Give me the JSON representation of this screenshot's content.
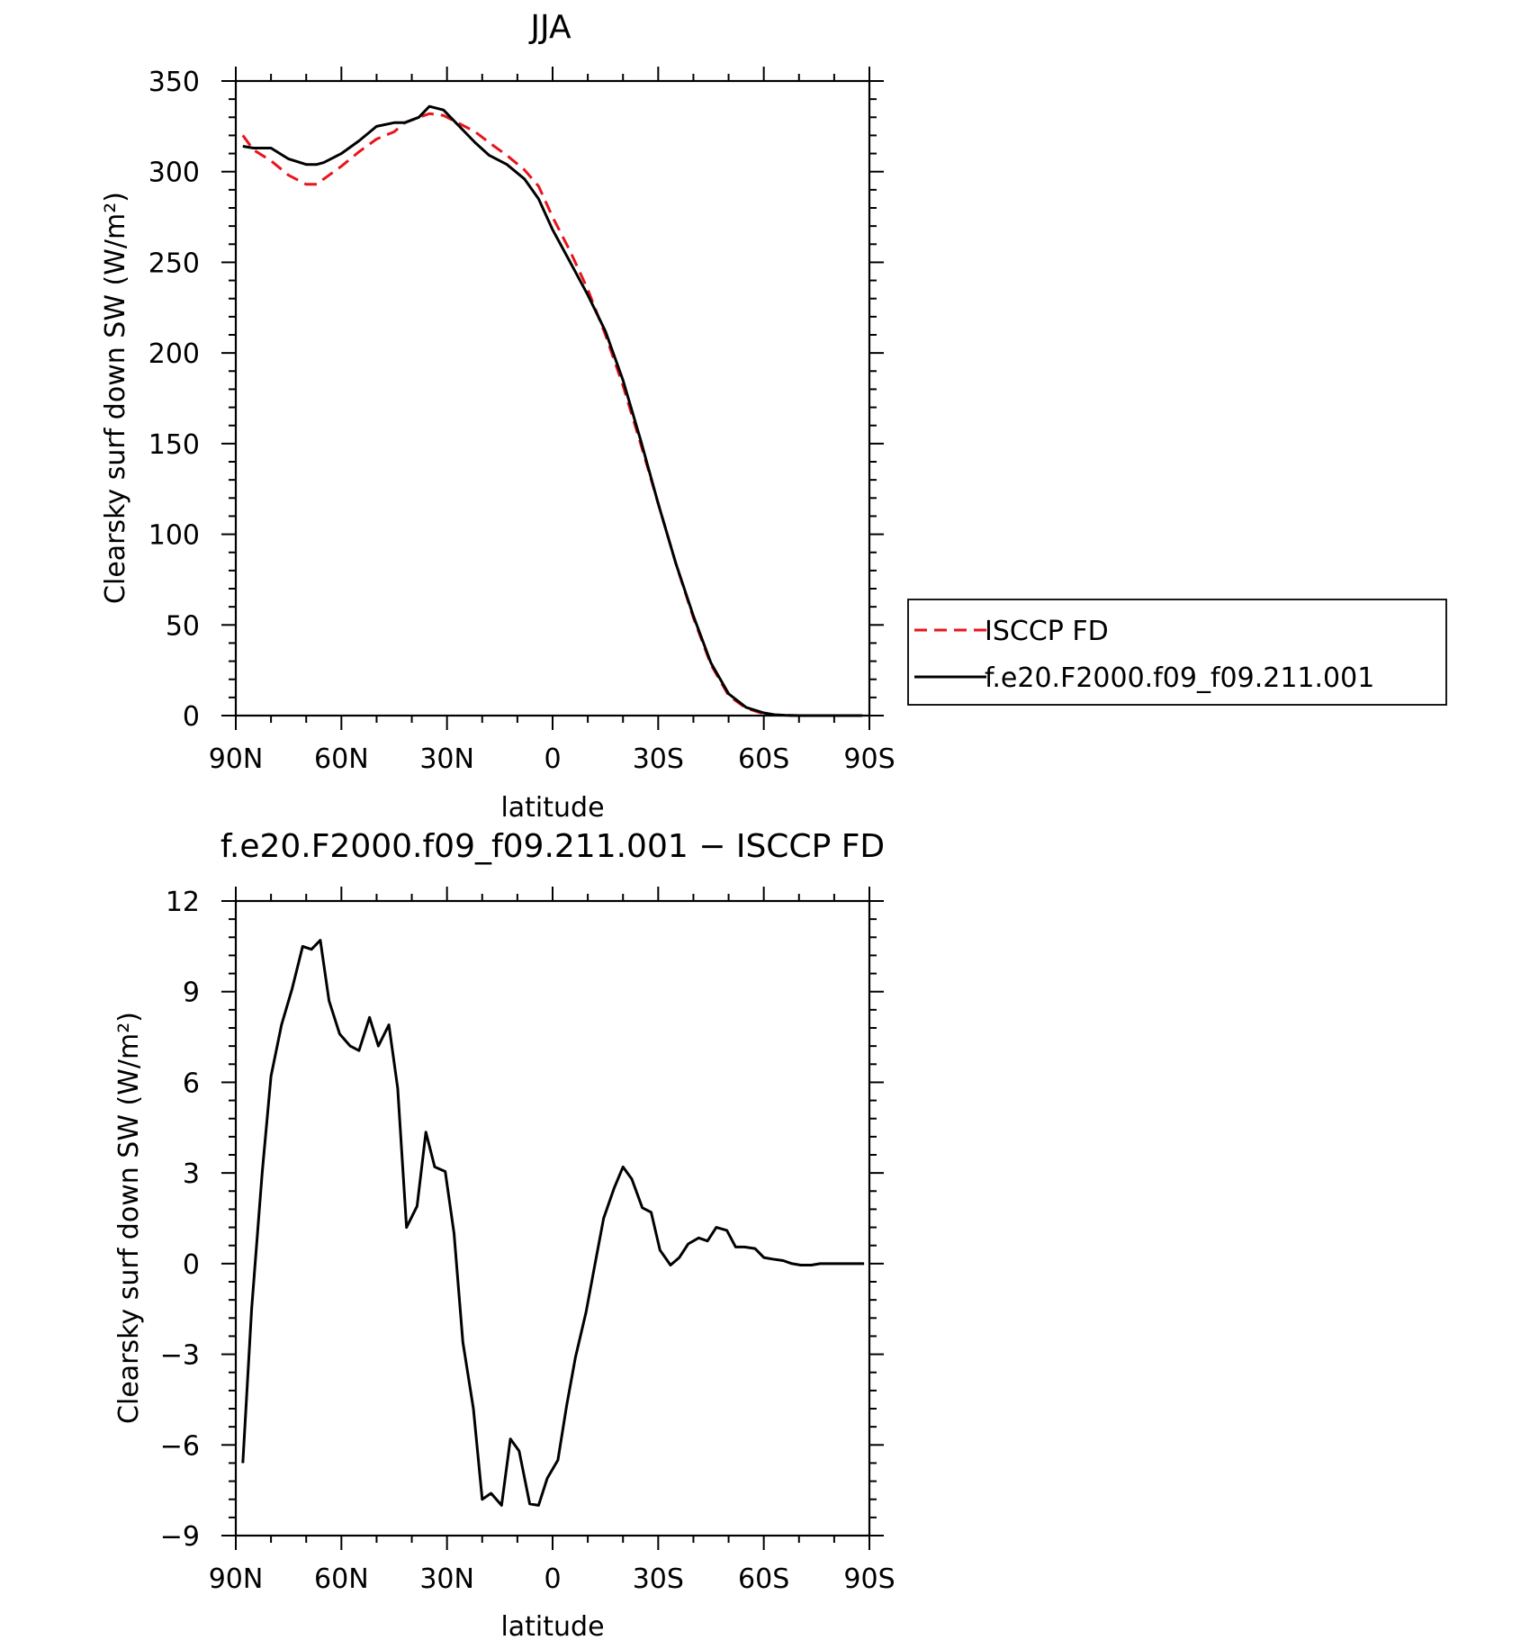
{
  "colors": {
    "isccp": "#e8141c",
    "model": "#000000",
    "axes": "#000000",
    "background": "#ffffff"
  },
  "chart_data": [
    {
      "type": "line",
      "title": "JJA",
      "xlabel": "latitude",
      "ylabel": "Clearsky surf down SW (W/m²)",
      "xlim": [
        90,
        -90
      ],
      "ylim": [
        0,
        350
      ],
      "xticks": [
        90,
        60,
        30,
        0,
        -30,
        -60,
        -90
      ],
      "xtick_labels": [
        "90N",
        "60N",
        "30N",
        "0",
        "30S",
        "60S",
        "90S"
      ],
      "yticks": [
        0,
        50,
        100,
        150,
        200,
        250,
        300,
        350
      ],
      "ytick_labels": [
        "0",
        "50",
        "100",
        "150",
        "200",
        "250",
        "300",
        "350"
      ],
      "legend": {
        "placement": "right, outside plot"
      },
      "series": [
        {
          "name": "ISCCP FD",
          "style": "dashed",
          "x": [
            88,
            85,
            80,
            75,
            70,
            67,
            65,
            60,
            55,
            50,
            45,
            42,
            38,
            35,
            31,
            27,
            22,
            18,
            13,
            8,
            4,
            0,
            -5,
            -10,
            -15,
            -20,
            -25,
            -30,
            -35,
            -40,
            -45,
            -50,
            -55,
            -60,
            -63,
            -66,
            -70,
            -75,
            -78,
            -82,
            -85,
            -88
          ],
          "y": [
            320,
            312,
            306,
            298,
            293,
            293,
            296,
            303,
            311,
            318,
            322,
            327,
            330,
            332,
            331,
            327,
            322,
            316,
            309,
            301,
            292,
            275,
            256,
            235,
            210,
            182,
            150,
            117,
            84,
            54,
            28,
            11,
            4,
            1,
            0.3,
            0.1,
            0,
            0,
            0,
            0,
            0,
            0
          ]
        },
        {
          "name": "f.e20.F2000.f09_f09.211.001",
          "style": "solid",
          "x": [
            88,
            85,
            80,
            75,
            70,
            67,
            65,
            60,
            55,
            50,
            45,
            42,
            38,
            35,
            31,
            27,
            22,
            18,
            13,
            8,
            4,
            0,
            -5,
            -10,
            -15,
            -20,
            -25,
            -30,
            -35,
            -40,
            -45,
            -50,
            -55,
            -60,
            -63,
            -66,
            -70,
            -75,
            -78,
            -82,
            -85,
            -88
          ],
          "y": [
            314,
            313,
            313,
            307,
            304,
            304,
            305,
            310,
            317,
            325,
            327,
            327,
            330,
            336,
            334,
            326,
            316,
            309,
            304,
            296,
            285,
            268,
            250,
            232,
            212,
            185,
            152,
            117,
            84,
            55,
            29,
            12,
            4.5,
            1.5,
            0.5,
            0.2,
            0,
            0,
            0,
            0,
            0,
            0
          ]
        }
      ]
    },
    {
      "type": "line",
      "title": "f.e20.F2000.f09_f09.211.001 − ISCCP FD",
      "xlabel": "latitude",
      "ylabel": "Clearsky surf down SW (W/m²)",
      "xlim": [
        90,
        -90
      ],
      "ylim": [
        -9,
        12
      ],
      "xticks": [
        90,
        60,
        30,
        0,
        -30,
        -60,
        -90
      ],
      "xtick_labels": [
        "90N",
        "60N",
        "30N",
        "0",
        "30S",
        "60S",
        "90S"
      ],
      "yticks": [
        -9,
        -6,
        -3,
        0,
        3,
        6,
        9,
        12
      ],
      "ytick_labels": [
        "−9",
        "−6",
        "−3",
        "0",
        "3",
        "6",
        "9",
        "12"
      ],
      "series": [
        {
          "style": "solid",
          "x": [
            88,
            85.5,
            82.5,
            80,
            77,
            74,
            71,
            68.5,
            66,
            63.5,
            60.5,
            57.5,
            55,
            52,
            49.5,
            46.5,
            44,
            41.5,
            38.5,
            36,
            33.5,
            30.5,
            28,
            25.5,
            22.5,
            20,
            17.5,
            14.5,
            12,
            9.5,
            6.5,
            4,
            1.5,
            -1.5,
            -4,
            -6.5,
            -9.5,
            -12,
            -14.5,
            -17.5,
            -20,
            -22.5,
            -25.5,
            -28,
            -30.5,
            -33.5,
            -36,
            -38.5,
            -41.5,
            -44,
            -46.5,
            -49.5,
            -52,
            -54.5,
            -57.5,
            -60,
            -62.5,
            -65.5,
            -68,
            -70.5,
            -73.5,
            -76,
            -78.5,
            -81.5,
            -84,
            -86.5,
            -88.5
          ],
          "y": [
            -6.6,
            -1.5,
            3.0,
            6.2,
            7.9,
            9.1,
            10.5,
            10.4,
            10.7,
            8.7,
            7.6,
            7.2,
            7.05,
            8.15,
            7.2,
            7.9,
            5.8,
            1.2,
            1.9,
            4.35,
            3.2,
            3.05,
            1.0,
            -2.6,
            -4.8,
            -7.8,
            -7.6,
            -8.0,
            -5.8,
            -6.2,
            -7.95,
            -8.0,
            -7.1,
            -6.5,
            -4.7,
            -3.1,
            -1.6,
            -0.05,
            1.5,
            2.5,
            3.2,
            2.8,
            1.85,
            1.7,
            0.45,
            -0.05,
            0.2,
            0.65,
            0.85,
            0.75,
            1.2,
            1.1,
            0.55,
            0.55,
            0.5,
            0.2,
            0.15,
            0.1,
            0.0,
            -0.05,
            -0.05,
            0.0,
            0.0,
            0.0,
            0.0,
            0.0,
            0.0
          ]
        }
      ]
    }
  ]
}
